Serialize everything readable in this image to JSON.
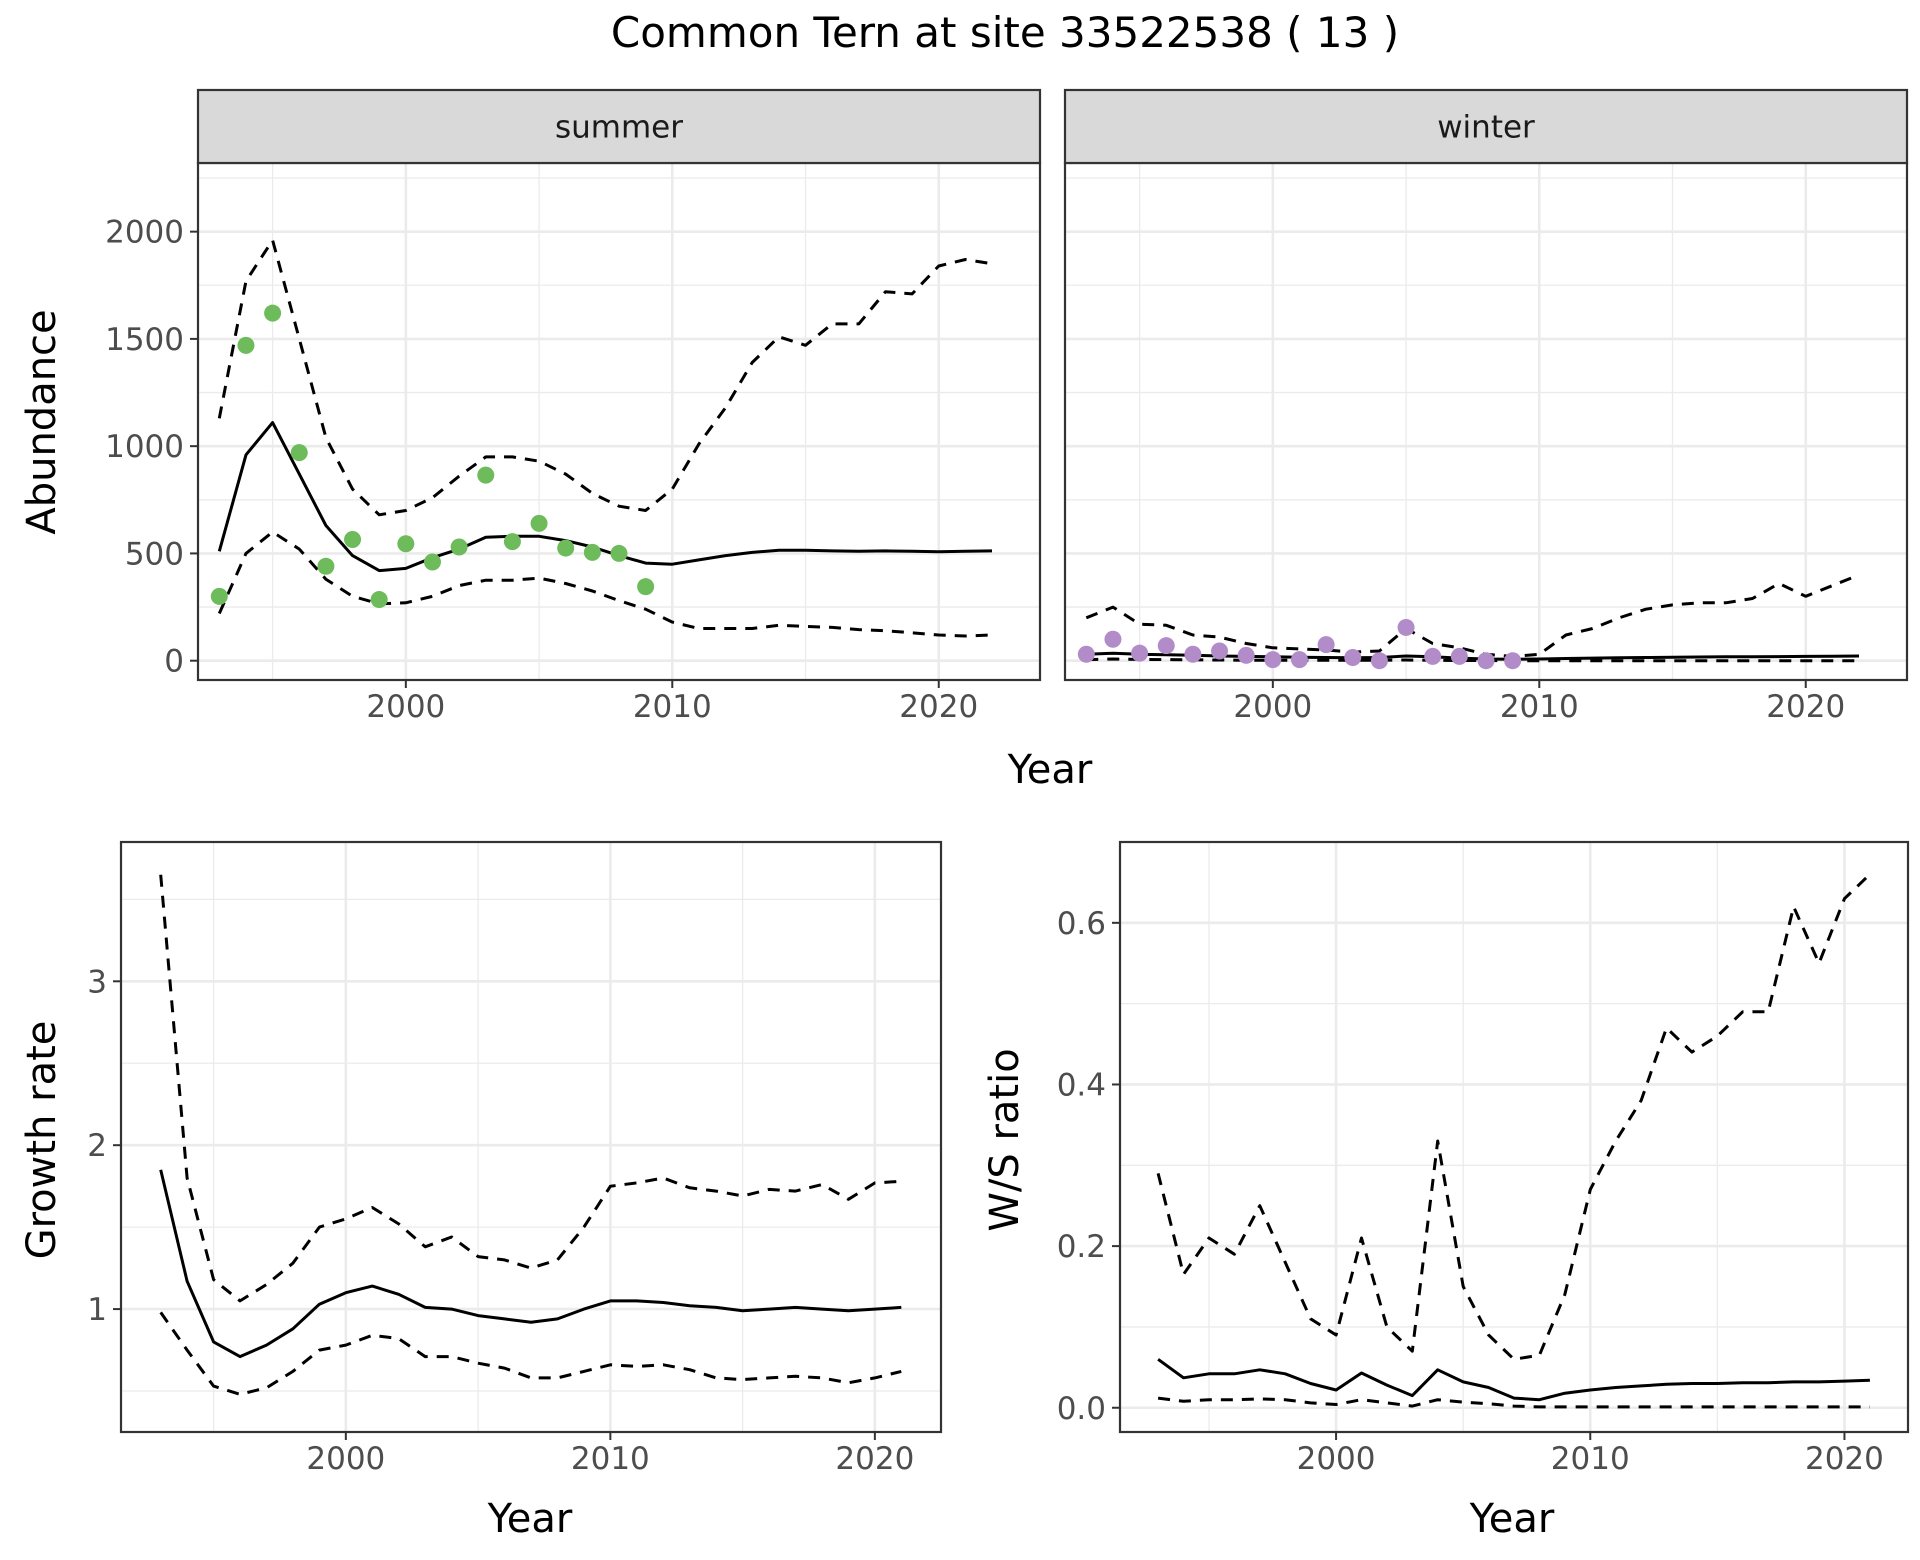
{
  "title": "Common Tern at site 33522538 ( 13 )",
  "colors": {
    "summer_points": "#6dbb5a",
    "winter_points": "#b18cc8",
    "line": "#000000",
    "strip": "#d9d9d9",
    "grid": "#ebebeb"
  },
  "chart_data": [
    {
      "type": "line",
      "panel": "abundance",
      "facets": [
        "summer",
        "winter"
      ],
      "xlabel": "Year",
      "ylabel": "Abundance",
      "xlim": [
        1992.2,
        2023.8
      ],
      "ylim": [
        -90,
        2320
      ],
      "xticks": [
        2000,
        2010,
        2020
      ],
      "yticks": [
        0,
        500,
        1000,
        1500,
        2000
      ],
      "grid": true,
      "series": [
        {
          "facet": "summer",
          "years": [
            1993,
            1994,
            1995,
            1996,
            1997,
            1998,
            1999,
            2000,
            2001,
            2002,
            2003,
            2004,
            2005,
            2006,
            2007,
            2008,
            2009,
            2010,
            2011,
            2012,
            2013,
            2014,
            2015,
            2016,
            2017,
            2018,
            2019,
            2020,
            2021,
            2022
          ],
          "mean": [
            510,
            960,
            1110,
            870,
            630,
            490,
            420,
            430,
            480,
            520,
            575,
            580,
            580,
            560,
            530,
            490,
            455,
            450,
            470,
            490,
            505,
            515,
            515,
            512,
            510,
            512,
            510,
            508,
            510,
            512
          ],
          "upper": [
            1130,
            1770,
            1960,
            1500,
            1040,
            800,
            680,
            700,
            760,
            860,
            950,
            950,
            930,
            870,
            780,
            720,
            700,
            800,
            1010,
            1180,
            1390,
            1510,
            1470,
            1570,
            1570,
            1720,
            1710,
            1840,
            1870,
            1850
          ],
          "lower": [
            220,
            500,
            600,
            520,
            380,
            300,
            265,
            270,
            300,
            350,
            375,
            375,
            385,
            360,
            325,
            280,
            240,
            180,
            150,
            150,
            150,
            165,
            160,
            155,
            145,
            140,
            130,
            120,
            115,
            120
          ],
          "obs_years": [
            1993,
            1994,
            1995,
            1996,
            1997,
            1998,
            1999,
            2000,
            2001,
            2002,
            2003,
            2004,
            2005,
            2006,
            2007,
            2008,
            2009
          ],
          "obs": [
            300,
            1470,
            1620,
            970,
            440,
            565,
            285,
            545,
            460,
            530,
            865,
            555,
            640,
            525,
            505,
            500,
            345
          ]
        },
        {
          "facet": "winter",
          "years": [
            1993,
            1994,
            1995,
            1996,
            1997,
            1998,
            1999,
            2000,
            2001,
            2002,
            2003,
            2004,
            2005,
            2006,
            2007,
            2008,
            2009,
            2010,
            2011,
            2012,
            2013,
            2014,
            2015,
            2016,
            2017,
            2018,
            2019,
            2020,
            2021,
            2022
          ],
          "mean": [
            30,
            35,
            30,
            28,
            25,
            22,
            20,
            18,
            16,
            15,
            14,
            15,
            22,
            18,
            12,
            8,
            7,
            8,
            10,
            12,
            14,
            15,
            16,
            17,
            18,
            18,
            19,
            20,
            21,
            22
          ],
          "upper": [
            200,
            250,
            170,
            165,
            120,
            110,
            80,
            60,
            55,
            50,
            40,
            45,
            150,
            80,
            60,
            30,
            20,
            30,
            120,
            150,
            200,
            240,
            260,
            270,
            270,
            290,
            360,
            300,
            350,
            400
          ],
          "lower": [
            5,
            8,
            6,
            5,
            4,
            3,
            2,
            2,
            2,
            2,
            2,
            2,
            3,
            2,
            1,
            1,
            0,
            0,
            0,
            0,
            0,
            0,
            0,
            0,
            0,
            0,
            0,
            0,
            0,
            0
          ],
          "obs_years": [
            1993,
            1994,
            1995,
            1996,
            1997,
            1998,
            1999,
            2000,
            2001,
            2002,
            2003,
            2004,
            2005,
            2006,
            2007,
            2008,
            2009
          ],
          "obs": [
            30,
            100,
            35,
            70,
            30,
            45,
            25,
            5,
            5,
            75,
            15,
            0,
            155,
            20,
            20,
            0,
            0
          ]
        }
      ]
    },
    {
      "type": "line",
      "panel": "growth",
      "xlabel": "Year",
      "ylabel": "Growth rate",
      "xlim": [
        1991.5,
        2022.5
      ],
      "ylim": [
        0.25,
        3.85
      ],
      "xticks": [
        2000,
        2010,
        2020
      ],
      "yticks": [
        1,
        2,
        3
      ],
      "grid": true,
      "years": [
        1993,
        1994,
        1995,
        1996,
        1997,
        1998,
        1999,
        2000,
        2001,
        2002,
        2003,
        2004,
        2005,
        2006,
        2007,
        2008,
        2009,
        2010,
        2011,
        2012,
        2013,
        2014,
        2015,
        2016,
        2017,
        2018,
        2019,
        2020,
        2021
      ],
      "mean": [
        1.85,
        1.17,
        0.8,
        0.71,
        0.78,
        0.88,
        1.03,
        1.1,
        1.14,
        1.09,
        1.01,
        1.0,
        0.96,
        0.94,
        0.92,
        0.94,
        1.0,
        1.05,
        1.05,
        1.04,
        1.02,
        1.01,
        0.99,
        1.0,
        1.01,
        1.0,
        0.99,
        1.0,
        1.01
      ],
      "upper": [
        3.65,
        1.8,
        1.18,
        1.05,
        1.15,
        1.28,
        1.5,
        1.55,
        1.62,
        1.52,
        1.38,
        1.44,
        1.32,
        1.3,
        1.25,
        1.3,
        1.5,
        1.75,
        1.77,
        1.8,
        1.74,
        1.72,
        1.69,
        1.73,
        1.72,
        1.76,
        1.67,
        1.77,
        1.78
      ],
      "lower": [
        0.98,
        0.75,
        0.53,
        0.48,
        0.52,
        0.62,
        0.75,
        0.78,
        0.84,
        0.82,
        0.71,
        0.71,
        0.67,
        0.64,
        0.58,
        0.58,
        0.62,
        0.66,
        0.65,
        0.66,
        0.63,
        0.58,
        0.57,
        0.58,
        0.59,
        0.58,
        0.55,
        0.58,
        0.62
      ]
    },
    {
      "type": "line",
      "panel": "ratio",
      "xlabel": "Year",
      "ylabel": "W/S ratio",
      "xlim": [
        1991.5,
        2022.5
      ],
      "ylim": [
        -0.03,
        0.7
      ],
      "xticks": [
        2000,
        2010,
        2020
      ],
      "yticks": [
        0.0,
        0.2,
        0.4,
        0.6
      ],
      "ytick_labels": [
        "0.0",
        "0.2",
        "0.4",
        "0.6"
      ],
      "grid": true,
      "years": [
        1993,
        1994,
        1995,
        1996,
        1997,
        1998,
        1999,
        2000,
        2001,
        2002,
        2003,
        2004,
        2005,
        2006,
        2007,
        2008,
        2009,
        2010,
        2011,
        2012,
        2013,
        2014,
        2015,
        2016,
        2017,
        2018,
        2019,
        2020,
        2021
      ],
      "mean": [
        0.06,
        0.037,
        0.042,
        0.042,
        0.047,
        0.042,
        0.03,
        0.022,
        0.043,
        0.028,
        0.015,
        0.047,
        0.032,
        0.025,
        0.012,
        0.01,
        0.018,
        0.022,
        0.025,
        0.027,
        0.029,
        0.03,
        0.03,
        0.031,
        0.031,
        0.032,
        0.032,
        0.033,
        0.034
      ],
      "upper": [
        0.29,
        0.165,
        0.21,
        0.19,
        0.25,
        0.18,
        0.11,
        0.09,
        0.21,
        0.1,
        0.07,
        0.33,
        0.15,
        0.09,
        0.06,
        0.065,
        0.14,
        0.27,
        0.33,
        0.38,
        0.47,
        0.44,
        0.46,
        0.49,
        0.49,
        0.62,
        0.55,
        0.63,
        0.66
      ],
      "lower": [
        0.012,
        0.008,
        0.01,
        0.01,
        0.011,
        0.01,
        0.006,
        0.004,
        0.01,
        0.006,
        0.002,
        0.01,
        0.007,
        0.005,
        0.002,
        0.001,
        0.001,
        0.001,
        0.001,
        0.001,
        0.001,
        0.001,
        0.001,
        0.001,
        0.001,
        0.001,
        0.001,
        0.001,
        0.001
      ]
    }
  ]
}
